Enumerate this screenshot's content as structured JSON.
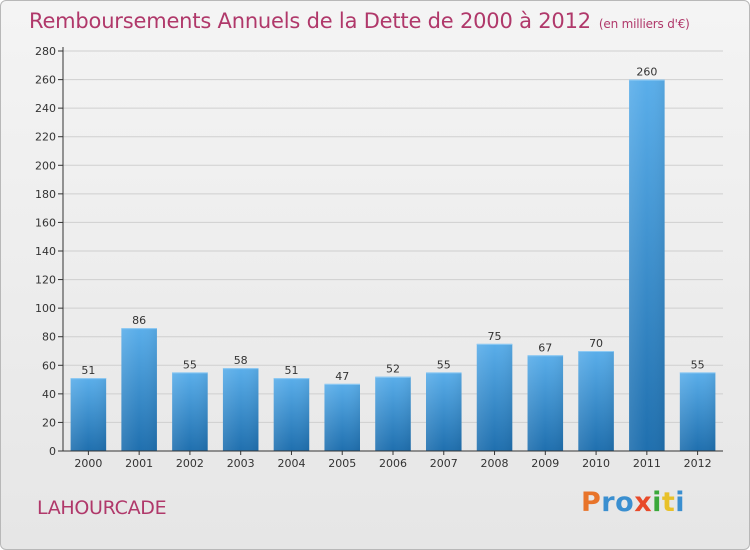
{
  "title": "Remboursements Annuels de la Dette de 2000 à 2012",
  "unit_note": "(en milliers d'€)",
  "commune": "LAHOURCADE",
  "logo_text": "Proxiti",
  "colors": {
    "title": "#b0386a",
    "bar_top": "#5aaeea",
    "bar_bottom": "#1f6fae",
    "grid": "#cfcfcf",
    "axis": "#333333"
  },
  "chart_data": {
    "type": "bar",
    "title": "Remboursements Annuels de la Dette de 2000 à 2012",
    "subtitle": "(en milliers d'€)",
    "categories": [
      "2000",
      "2001",
      "2002",
      "2003",
      "2004",
      "2005",
      "2006",
      "2007",
      "2008",
      "2009",
      "2010",
      "2011",
      "2012"
    ],
    "values": [
      51,
      86,
      55,
      58,
      51,
      47,
      52,
      55,
      75,
      67,
      70,
      260,
      55
    ],
    "ylim": [
      0,
      280
    ],
    "yticks": [
      0,
      20,
      40,
      60,
      80,
      100,
      120,
      140,
      160,
      180,
      200,
      220,
      240,
      260,
      280
    ],
    "grid": true,
    "legend": "none"
  }
}
